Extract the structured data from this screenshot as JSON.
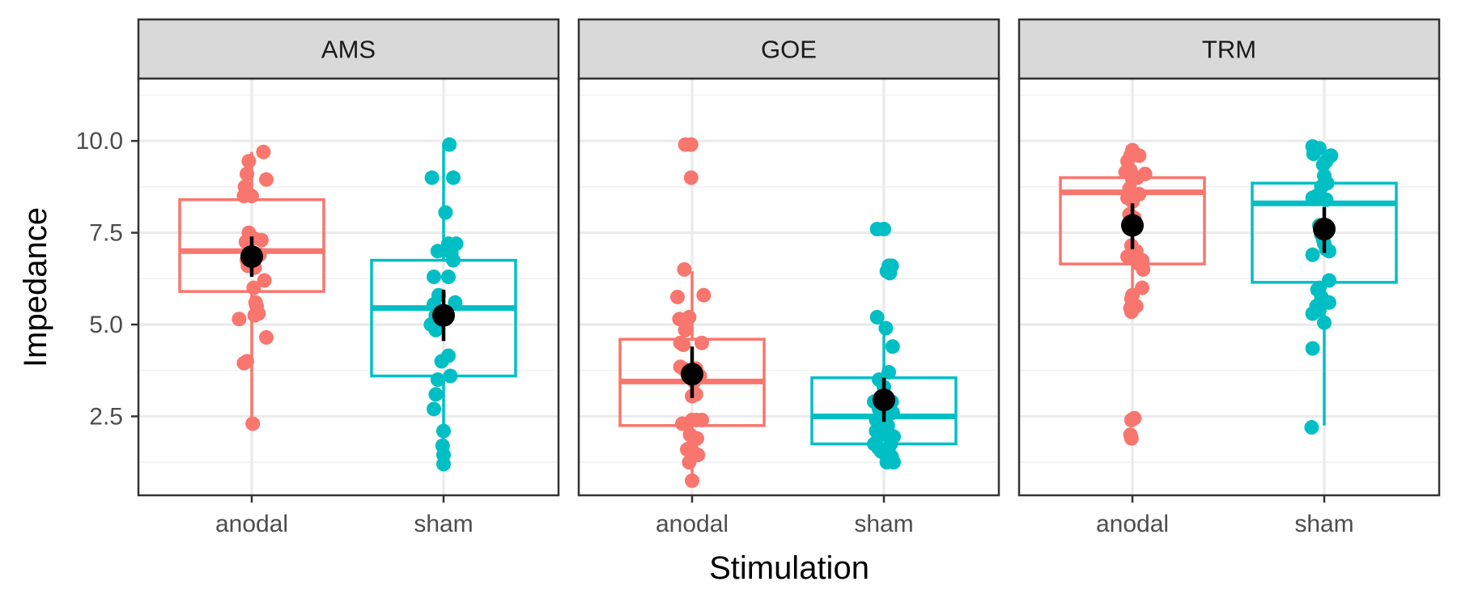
{
  "chart_data": {
    "type": "boxplot",
    "xlabel": "Stimulation",
    "ylabel": "Impedance",
    "ylim": [
      0.35,
      11.7
    ],
    "yticks": [
      2.5,
      5.0,
      7.5,
      10.0
    ],
    "ytick_labels": [
      "2.5",
      "5.0",
      "7.5",
      "10.0"
    ],
    "categories": [
      "anodal",
      "sham"
    ],
    "colors": {
      "anodal": "#F8766D",
      "sham": "#00BFC4",
      "mean": "#000000"
    },
    "grid": true,
    "facets": [
      {
        "title": "AMS",
        "groups": [
          {
            "name": "anodal",
            "box": {
              "whisker_low": 2.3,
              "q1": 5.9,
              "median": 7.0,
              "q3": 8.4,
              "whisker_high": 9.7
            },
            "mean": 6.85,
            "ci": [
              6.3,
              7.4
            ],
            "points": [
              [
                0.12,
                9.7
              ],
              [
                -0.03,
                9.45
              ],
              [
                -0.05,
                9.1
              ],
              [
                0.15,
                8.95
              ],
              [
                -0.07,
                8.75
              ],
              [
                -0.06,
                8.6
              ],
              [
                -0.08,
                8.5
              ],
              [
                0.0,
                8.5
              ],
              [
                -0.03,
                7.5
              ],
              [
                0.02,
                7.35
              ],
              [
                0.1,
                7.3
              ],
              [
                -0.06,
                7.25
              ],
              [
                0.08,
                6.9
              ],
              [
                -0.05,
                6.75
              ],
              [
                -0.04,
                6.6
              ],
              [
                0.03,
                6.55
              ],
              [
                0.13,
                6.2
              ],
              [
                0.02,
                6.0
              ],
              [
                0.04,
                5.6
              ],
              [
                0.05,
                5.5
              ],
              [
                0.07,
                5.3
              ],
              [
                0.03,
                5.25
              ],
              [
                -0.13,
                5.15
              ],
              [
                0.15,
                4.65
              ],
              [
                -0.05,
                4.0
              ],
              [
                -0.08,
                3.95
              ],
              [
                0.01,
                2.3
              ]
            ]
          },
          {
            "name": "sham",
            "box": {
              "whisker_low": 1.2,
              "q1": 3.6,
              "median": 5.45,
              "q3": 6.75,
              "whisker_high": 9.9
            },
            "mean": 5.25,
            "ci": [
              4.55,
              5.95
            ],
            "points": [
              [
                0.06,
                9.9
              ],
              [
                -0.12,
                9.0
              ],
              [
                0.1,
                9.0
              ],
              [
                0.02,
                8.05
              ],
              [
                0.05,
                7.2
              ],
              [
                0.13,
                7.2
              ],
              [
                -0.06,
                7.0
              ],
              [
                0.08,
                6.95
              ],
              [
                0.1,
                6.75
              ],
              [
                -0.1,
                6.3
              ],
              [
                0.05,
                6.3
              ],
              [
                -0.05,
                5.8
              ],
              [
                -0.1,
                5.55
              ],
              [
                0.12,
                5.6
              ],
              [
                -0.08,
                5.25
              ],
              [
                -0.13,
                5.0
              ],
              [
                -0.08,
                4.85
              ],
              [
                0.05,
                4.15
              ],
              [
                -0.02,
                4.0
              ],
              [
                0.07,
                3.6
              ],
              [
                -0.06,
                3.5
              ],
              [
                -0.08,
                3.1
              ],
              [
                -0.1,
                2.7
              ],
              [
                0.0,
                2.1
              ],
              [
                -0.01,
                1.7
              ],
              [
                0.0,
                1.45
              ],
              [
                0.0,
                1.2
              ]
            ]
          }
        ]
      },
      {
        "title": "GOE",
        "groups": [
          {
            "name": "anodal",
            "box": {
              "whisker_low": 0.7,
              "q1": 2.25,
              "median": 3.45,
              "q3": 4.6,
              "whisker_high": 6.45
            },
            "mean": 3.65,
            "ci": [
              3.0,
              4.4
            ],
            "points": [
              [
                -0.07,
                9.9
              ],
              [
                -0.01,
                9.9
              ],
              [
                -0.01,
                9.0
              ],
              [
                -0.08,
                6.5
              ],
              [
                0.12,
                5.8
              ],
              [
                -0.15,
                5.75
              ],
              [
                -0.03,
                5.2
              ],
              [
                -0.13,
                5.15
              ],
              [
                -0.07,
                4.85
              ],
              [
                -0.12,
                4.5
              ],
              [
                -0.09,
                4.45
              ],
              [
                0.1,
                4.5
              ],
              [
                -0.12,
                3.85
              ],
              [
                -0.09,
                3.8
              ],
              [
                0.04,
                3.8
              ],
              [
                0.08,
                3.6
              ],
              [
                0.02,
                3.45
              ],
              [
                0.04,
                3.1
              ],
              [
                0.0,
                3.05
              ],
              [
                -0.1,
                2.3
              ],
              [
                -0.05,
                2.3
              ],
              [
                0.0,
                2.4
              ],
              [
                0.05,
                2.4
              ],
              [
                0.1,
                2.4
              ],
              [
                -0.02,
                2.0
              ],
              [
                0.05,
                1.9
              ],
              [
                -0.01,
                1.65
              ],
              [
                -0.05,
                1.6
              ],
              [
                0.06,
                1.45
              ],
              [
                -0.03,
                1.25
              ],
              [
                0.0,
                0.75
              ]
            ]
          },
          {
            "name": "sham",
            "box": {
              "whisker_low": 1.2,
              "q1": 1.75,
              "median": 2.5,
              "q3": 3.55,
              "whisker_high": 5.0
            },
            "mean": 2.95,
            "ci": [
              2.35,
              3.55
            ],
            "points": [
              [
                -0.07,
                7.6
              ],
              [
                0.0,
                7.6
              ],
              [
                0.05,
                6.6
              ],
              [
                0.08,
                6.6
              ],
              [
                0.03,
                6.45
              ],
              [
                0.06,
                6.4
              ],
              [
                -0.07,
                5.2
              ],
              [
                0.02,
                4.9
              ],
              [
                0.09,
                4.4
              ],
              [
                0.05,
                3.7
              ],
              [
                -0.05,
                3.5
              ],
              [
                0.0,
                3.3
              ],
              [
                -0.1,
                2.9
              ],
              [
                0.08,
                2.9
              ],
              [
                -0.05,
                2.7
              ],
              [
                0.09,
                2.6
              ],
              [
                -0.08,
                2.4
              ],
              [
                0.04,
                2.25
              ],
              [
                -0.08,
                2.1
              ],
              [
                -0.03,
                2.0
              ],
              [
                0.1,
                1.95
              ],
              [
                -0.1,
                1.75
              ],
              [
                0.07,
                1.75
              ],
              [
                -0.06,
                1.65
              ],
              [
                0.05,
                1.65
              ],
              [
                -0.03,
                1.55
              ],
              [
                0.0,
                1.5
              ],
              [
                0.08,
                1.4
              ],
              [
                0.03,
                1.25
              ],
              [
                0.1,
                1.25
              ]
            ]
          }
        ]
      },
      {
        "title": "TRM",
        "groups": [
          {
            "name": "anodal",
            "box": {
              "whisker_low": 5.3,
              "q1": 6.65,
              "median": 8.6,
              "q3": 9.0,
              "whisker_high": 9.75
            },
            "mean": 7.7,
            "ci": [
              7.05,
              8.3
            ],
            "points": [
              [
                0.0,
                9.75
              ],
              [
                -0.02,
                9.6
              ],
              [
                0.07,
                9.6
              ],
              [
                -0.05,
                9.45
              ],
              [
                -0.02,
                9.2
              ],
              [
                -0.07,
                9.15
              ],
              [
                0.13,
                9.1
              ],
              [
                0.05,
                9.0
              ],
              [
                0.0,
                8.95
              ],
              [
                -0.03,
                8.7
              ],
              [
                0.07,
                8.55
              ],
              [
                -0.05,
                8.45
              ],
              [
                0.0,
                8.35
              ],
              [
                -0.03,
                8.0
              ],
              [
                0.02,
                7.9
              ],
              [
                0.02,
                7.7
              ],
              [
                -0.01,
                7.15
              ],
              [
                0.04,
                7.0
              ],
              [
                -0.05,
                6.85
              ],
              [
                0.06,
                6.8
              ],
              [
                0.1,
                6.75
              ],
              [
                0.07,
                6.65
              ],
              [
                0.11,
                6.5
              ],
              [
                0.1,
                6.0
              ],
              [
                0.0,
                5.8
              ],
              [
                -0.01,
                5.7
              ],
              [
                0.04,
                5.5
              ],
              [
                -0.02,
                5.45
              ],
              [
                -0.01,
                5.35
              ],
              [
                -0.01,
                2.4
              ],
              [
                0.02,
                2.45
              ],
              [
                -0.02,
                2.0
              ],
              [
                -0.01,
                1.9
              ]
            ]
          },
          {
            "name": "sham",
            "box": {
              "whisker_low": 2.25,
              "q1": 6.15,
              "median": 8.3,
              "q3": 8.85,
              "whisker_high": 9.7
            },
            "mean": 7.6,
            "ci": [
              6.95,
              8.2
            ],
            "points": [
              [
                -0.12,
                9.85
              ],
              [
                -0.09,
                9.8
              ],
              [
                -0.05,
                9.8
              ],
              [
                -0.11,
                9.65
              ],
              [
                0.07,
                9.6
              ],
              [
                0.02,
                9.45
              ],
              [
                -0.01,
                9.35
              ],
              [
                0.0,
                9.05
              ],
              [
                0.03,
                8.85
              ],
              [
                -0.03,
                8.75
              ],
              [
                0.02,
                8.4
              ],
              [
                -0.08,
                8.5
              ],
              [
                -0.12,
                8.45
              ],
              [
                -0.05,
                7.7
              ],
              [
                -0.03,
                7.45
              ],
              [
                -0.01,
                7.3
              ],
              [
                0.0,
                7.2
              ],
              [
                0.02,
                7.05
              ],
              [
                0.05,
                7.0
              ],
              [
                -0.12,
                6.9
              ],
              [
                0.05,
                6.2
              ],
              [
                -0.05,
                6.0
              ],
              [
                -0.07,
                5.95
              ],
              [
                -0.03,
                5.75
              ],
              [
                -0.08,
                5.5
              ],
              [
                -0.12,
                5.3
              ],
              [
                -0.05,
                5.4
              ],
              [
                0.0,
                5.05
              ],
              [
                0.05,
                5.6
              ],
              [
                -0.12,
                4.35
              ],
              [
                -0.13,
                2.2
              ]
            ]
          }
        ]
      }
    ]
  }
}
